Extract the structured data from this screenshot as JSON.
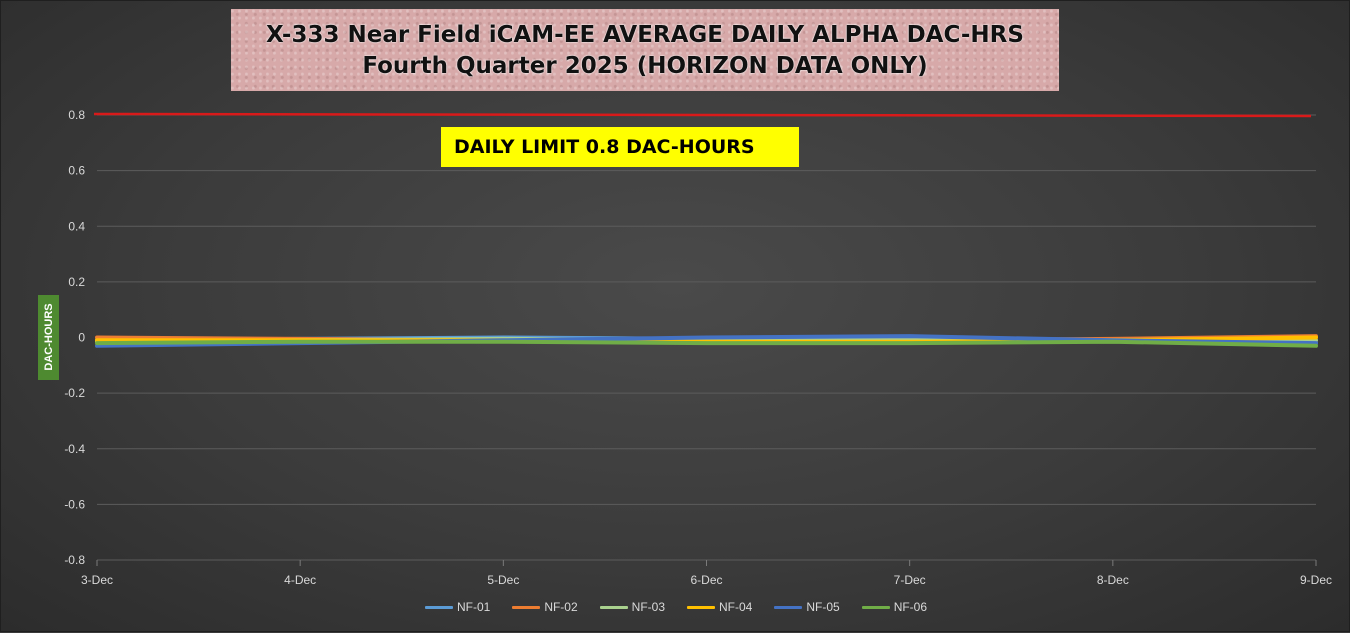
{
  "chart_data": {
    "type": "line",
    "title": "X-333 Near Field iCAM-EE AVERAGE DAILY ALPHA DAC-HRS",
    "subtitle": "Fourth Quarter 2025 (HORIZON DATA ONLY)",
    "ylabel": "DAC-HOURS",
    "xlabel": "",
    "categories": [
      "3-Dec",
      "4-Dec",
      "5-Dec",
      "6-Dec",
      "7-Dec",
      "8-Dec",
      "9-Dec"
    ],
    "yticks": [
      "0.8",
      "0.6",
      "0.4",
      "0.2",
      "0",
      "-0.2",
      "-0.4",
      "-0.6",
      "-0.8"
    ],
    "ylim": [
      -0.8,
      0.8
    ],
    "grid": true,
    "legend_position": "bottom",
    "limit": {
      "value": 0.8,
      "label": "DAILY LIMIT 0.8 DAC-HOURS",
      "color": "#d91a1a"
    },
    "series": [
      {
        "name": "NF-01",
        "color": "#5b9bd5",
        "values": [
          -0.01,
          -0.005,
          0.0,
          -0.005,
          -0.005,
          -0.01,
          -0.02
        ]
      },
      {
        "name": "NF-02",
        "color": "#ed7d31",
        "values": [
          0.0,
          -0.005,
          -0.01,
          -0.01,
          -0.01,
          -0.005,
          0.005
        ]
      },
      {
        "name": "NF-03",
        "color": "#a9d18e",
        "values": [
          -0.015,
          -0.01,
          -0.005,
          -0.01,
          -0.01,
          -0.01,
          -0.01
        ]
      },
      {
        "name": "NF-04",
        "color": "#ffc000",
        "values": [
          -0.01,
          -0.01,
          -0.01,
          -0.015,
          -0.015,
          -0.01,
          0.0
        ]
      },
      {
        "name": "NF-05",
        "color": "#4472c4",
        "values": [
          -0.03,
          -0.02,
          -0.01,
          0.0,
          0.005,
          -0.01,
          -0.02
        ]
      },
      {
        "name": "NF-06",
        "color": "#70ad47",
        "values": [
          -0.02,
          -0.015,
          -0.015,
          -0.02,
          -0.02,
          -0.015,
          -0.03
        ]
      }
    ]
  }
}
